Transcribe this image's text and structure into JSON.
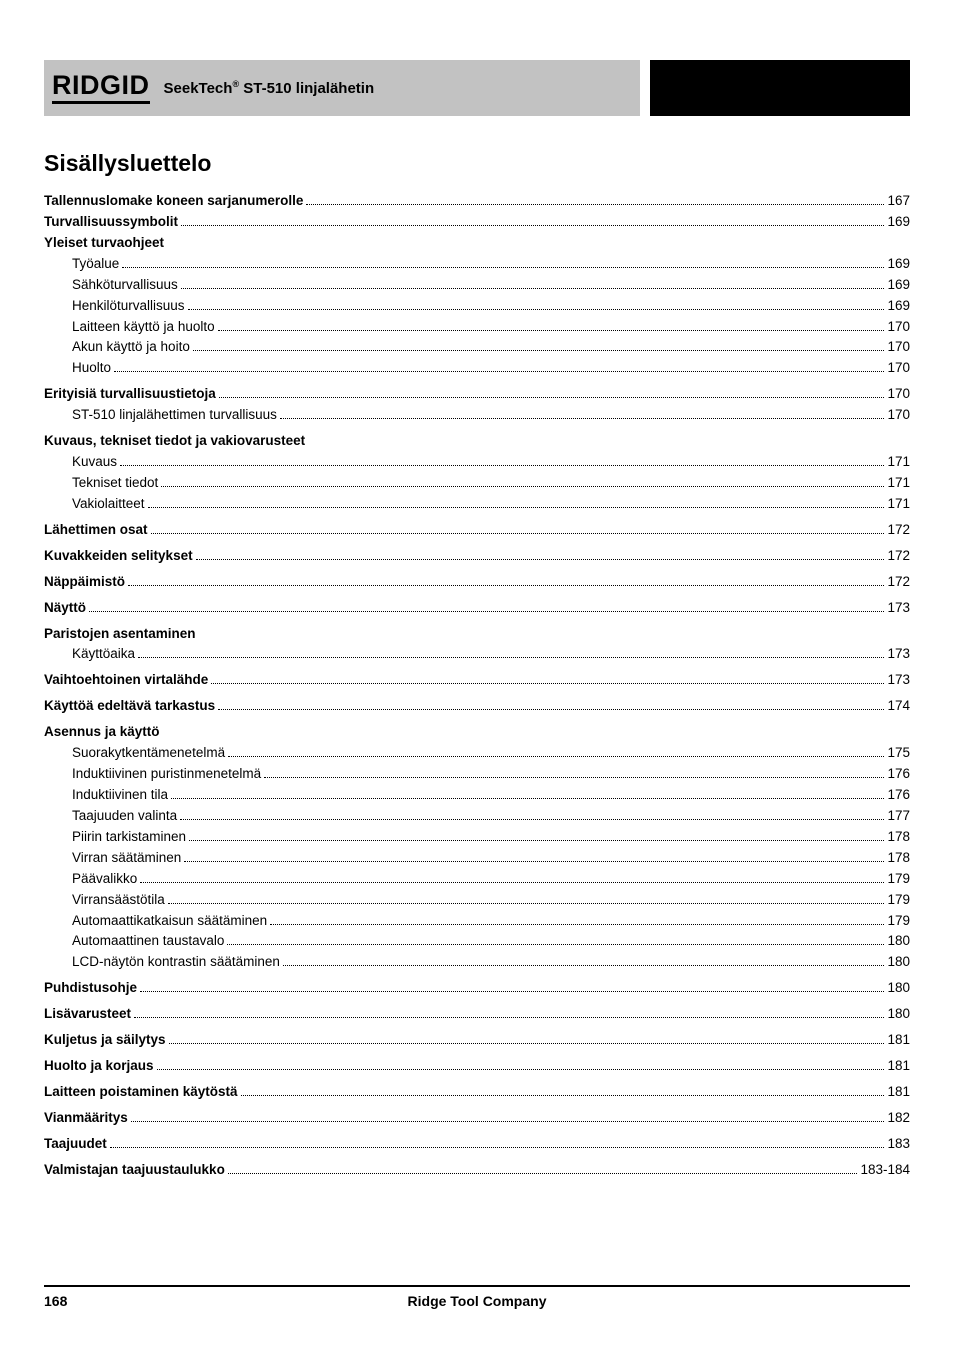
{
  "header": {
    "brand": "RIDGID",
    "product": "SeekTech",
    "reg": "®",
    "model": "ST-510 linjalähetin"
  },
  "toc_title": "Sisällysluettelo",
  "entries": [
    {
      "label": "Tallennuslomake koneen sarjanumerolle",
      "page": "167",
      "bold": true,
      "indent": false
    },
    {
      "label": "Turvallisuussymbolit",
      "page": "169",
      "bold": true,
      "indent": false
    },
    {
      "label": "Yleiset turvaohjeet",
      "page": "",
      "bold": true,
      "indent": false,
      "head": true
    },
    {
      "label": "Työalue",
      "page": "169",
      "bold": false,
      "indent": true
    },
    {
      "label": "Sähköturvallisuus",
      "page": "169",
      "bold": false,
      "indent": true
    },
    {
      "label": "Henkilöturvallisuus",
      "page": "169",
      "bold": false,
      "indent": true
    },
    {
      "label": "Laitteen käyttö ja huolto",
      "page": "170",
      "bold": false,
      "indent": true
    },
    {
      "label": "Akun käyttö ja hoito",
      "page": "170",
      "bold": false,
      "indent": true
    },
    {
      "label": "Huolto",
      "page": "170",
      "bold": false,
      "indent": true
    },
    {
      "gap": true
    },
    {
      "label": "Erityisiä turvallisuustietoja",
      "page": "170",
      "bold": true,
      "indent": false
    },
    {
      "label": "ST-510 linjalähettimen turvallisuus",
      "page": "170",
      "bold": false,
      "indent": true
    },
    {
      "gap": true
    },
    {
      "label": "Kuvaus, tekniset tiedot ja vakiovarusteet",
      "page": "",
      "bold": true,
      "indent": false,
      "head": true
    },
    {
      "label": "Kuvaus",
      "page": "171",
      "bold": false,
      "indent": true
    },
    {
      "label": "Tekniset tiedot",
      "page": "171",
      "bold": false,
      "indent": true
    },
    {
      "label": "Vakiolaitteet",
      "page": "171",
      "bold": false,
      "indent": true
    },
    {
      "gap": true
    },
    {
      "label": "Lähettimen osat",
      "page": "172",
      "bold": true,
      "indent": false
    },
    {
      "gap": true
    },
    {
      "label": "Kuvakkeiden selitykset",
      "page": "172",
      "bold": true,
      "indent": false
    },
    {
      "gap": true
    },
    {
      "label": "Näppäimistö",
      "page": "172",
      "bold": true,
      "indent": false
    },
    {
      "gap": true
    },
    {
      "label": "Näyttö",
      "page": "173",
      "bold": true,
      "indent": false
    },
    {
      "gap": true
    },
    {
      "label": "Paristojen asentaminen",
      "page": "",
      "bold": true,
      "indent": false,
      "head": true
    },
    {
      "label": "Käyttöaika",
      "page": "173",
      "bold": false,
      "indent": true
    },
    {
      "gap": true
    },
    {
      "label": "Vaihtoehtoinen virtalähde",
      "page": "173",
      "bold": true,
      "indent": false
    },
    {
      "gap": true
    },
    {
      "label": "Käyttöä edeltävä tarkastus",
      "page": "174",
      "bold": true,
      "indent": false
    },
    {
      "gap": true
    },
    {
      "label": "Asennus ja käyttö",
      "page": "",
      "bold": true,
      "indent": false,
      "head": true
    },
    {
      "label": "Suorakytkentämenetelmä",
      "page": "175",
      "bold": false,
      "indent": true
    },
    {
      "label": "Induktiivinen puristinmenetelmä",
      "page": "176",
      "bold": false,
      "indent": true
    },
    {
      "label": "Induktiivinen tila",
      "page": "176",
      "bold": false,
      "indent": true
    },
    {
      "label": "Taajuuden valinta",
      "page": "177",
      "bold": false,
      "indent": true
    },
    {
      "label": "Piirin tarkistaminen",
      "page": "178",
      "bold": false,
      "indent": true
    },
    {
      "label": "Virran säätäminen",
      "page": "178",
      "bold": false,
      "indent": true
    },
    {
      "label": "Päävalikko",
      "page": "179",
      "bold": false,
      "indent": true
    },
    {
      "label": "Virransäästötila",
      "page": "179",
      "bold": false,
      "indent": true
    },
    {
      "label": "Automaattikatkaisun säätäminen",
      "page": "179",
      "bold": false,
      "indent": true
    },
    {
      "label": "Automaattinen taustavalo",
      "page": "180",
      "bold": false,
      "indent": true
    },
    {
      "label": "LCD-näytön kontrastin säätäminen",
      "page": "180",
      "bold": false,
      "indent": true
    },
    {
      "gap": true
    },
    {
      "label": "Puhdistusohje",
      "page": "180",
      "bold": true,
      "indent": false
    },
    {
      "gap": true
    },
    {
      "label": "Lisävarusteet",
      "page": "180",
      "bold": true,
      "indent": false
    },
    {
      "gap": true
    },
    {
      "label": "Kuljetus ja säilytys",
      "page": "181",
      "bold": true,
      "indent": false
    },
    {
      "gap": true
    },
    {
      "label": "Huolto ja korjaus",
      "page": "181",
      "bold": true,
      "indent": false
    },
    {
      "gap": true
    },
    {
      "label": "Laitteen poistaminen käytöstä",
      "page": "181",
      "bold": true,
      "indent": false
    },
    {
      "gap": true
    },
    {
      "label": "Vianmääritys",
      "page": "182",
      "bold": true,
      "indent": false
    },
    {
      "gap": true
    },
    {
      "label": "Taajuudet",
      "page": "183",
      "bold": true,
      "indent": false
    },
    {
      "gap": true
    },
    {
      "label": "Valmistajan taajuustaulukko",
      "page": "183-184",
      "bold": true,
      "indent": false
    }
  ],
  "footer": {
    "page_number": "168",
    "company": "Ridge Tool Company"
  }
}
